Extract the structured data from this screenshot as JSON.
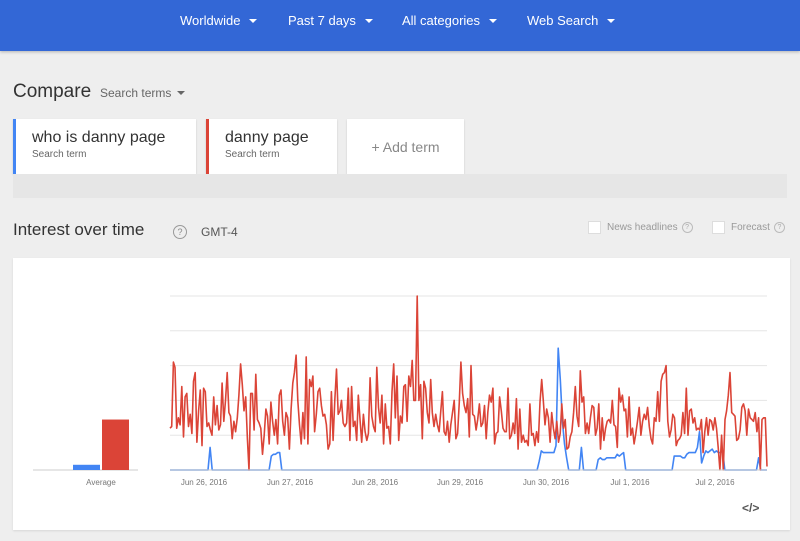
{
  "header": {
    "filters": [
      {
        "label": "Worldwide"
      },
      {
        "label": "Past 7 days"
      },
      {
        "label": "All categories"
      },
      {
        "label": "Web Search"
      }
    ]
  },
  "compare": {
    "title": "Compare",
    "dropdown_label": "Search terms",
    "terms": [
      {
        "term": "who is danny page",
        "sublabel": "Search term",
        "color": "#4285f4"
      },
      {
        "term": "danny page",
        "sublabel": "Search term",
        "color": "#db4437"
      }
    ],
    "add_term_label": "+ Add term"
  },
  "interest": {
    "title": "Interest over time",
    "help_glyph": "?",
    "timezone": "GMT-4",
    "news_headlines_label": "News headlines",
    "forecast_label": "Forecast",
    "embed_label": "</>"
  },
  "chart_data": {
    "type": "line",
    "ylim": [
      0,
      100
    ],
    "x_tick_labels": [
      "Jun 26, 2016",
      "Jun 27, 2016",
      "Jun 28, 2016",
      "Jun 29, 2016",
      "Jun 30, 2016",
      "Jul 1, 2016",
      "Jul 2, 2016"
    ],
    "average": {
      "label": "Average",
      "values": [
        3,
        29
      ],
      "colors": [
        "#4285f4",
        "#db4437"
      ]
    },
    "series": [
      {
        "name": "who is danny page",
        "color": "#4285f4",
        "values": [
          0,
          0,
          0,
          0,
          0,
          0,
          0,
          0,
          0,
          0,
          0,
          0,
          0,
          0,
          0,
          0,
          0,
          0,
          0,
          13,
          0,
          0,
          0,
          0,
          0,
          0,
          0,
          0,
          0,
          0,
          0,
          0,
          0,
          0,
          0,
          0,
          0,
          0,
          0,
          0,
          0,
          0,
          0,
          0,
          0,
          0,
          0,
          0,
          8,
          9,
          9,
          10,
          10,
          0,
          0,
          0,
          0,
          0,
          0,
          0,
          0,
          0,
          0,
          0,
          0,
          0,
          0,
          0,
          0,
          0,
          0,
          0,
          0,
          0,
          0,
          0,
          0,
          0,
          0,
          0,
          0,
          0,
          0,
          0,
          0,
          0,
          0,
          0,
          0,
          0,
          0,
          0,
          0,
          0,
          0,
          0,
          0,
          0,
          0,
          0,
          0,
          0,
          0,
          0,
          0,
          0,
          0,
          0,
          0,
          0,
          0,
          0,
          0,
          0,
          0,
          0,
          0,
          0,
          0,
          0,
          0,
          0,
          0,
          0,
          0,
          0,
          0,
          0,
          0,
          0,
          0,
          0,
          0,
          0,
          0,
          0,
          0,
          0,
          0,
          0,
          0,
          0,
          0,
          0,
          0,
          0,
          0,
          0,
          0,
          0,
          0,
          0,
          0,
          0,
          0,
          0,
          0,
          0,
          0,
          0,
          0,
          0,
          0,
          0,
          0,
          0,
          0,
          0,
          0,
          0,
          0,
          0,
          0,
          0,
          0,
          5,
          11,
          10,
          10,
          10,
          10,
          10,
          10,
          14,
          70,
          52,
          28,
          15,
          7,
          0,
          0,
          0,
          0,
          0,
          0,
          13,
          0,
          0,
          0,
          0,
          0,
          0,
          0,
          6,
          7,
          6,
          6,
          7,
          7,
          7,
          7,
          7,
          9,
          8,
          9,
          10,
          0,
          0,
          0,
          0,
          0,
          0,
          0,
          0,
          0,
          0,
          0,
          0,
          0,
          0,
          0,
          0,
          0,
          0,
          0,
          0,
          0,
          0,
          0,
          8,
          8,
          8,
          8,
          7,
          7,
          9,
          10,
          10,
          10,
          10,
          13,
          22,
          4,
          8,
          11,
          10,
          11,
          12,
          10,
          11,
          10,
          10,
          11,
          0,
          0,
          0,
          0,
          0,
          0,
          0,
          0,
          0,
          0,
          0,
          0,
          0,
          0,
          0,
          0,
          7,
          0,
          0,
          0,
          0
        ]
      },
      {
        "name": "danny page",
        "color": "#db4437",
        "values": [
          24,
          25,
          62,
          59,
          24,
          30,
          26,
          48,
          19,
          42,
          44,
          25,
          32,
          21,
          51,
          56,
          16,
          34,
          46,
          14,
          47,
          45,
          25,
          27,
          23,
          20,
          42,
          26,
          37,
          23,
          26,
          50,
          28,
          40,
          56,
          33,
          31,
          18,
          28,
          22,
          30,
          43,
          61,
          49,
          34,
          42,
          18,
          0,
          44,
          44,
          23,
          55,
          29,
          27,
          24,
          9,
          20,
          35,
          31,
          15,
          39,
          28,
          20,
          29,
          15,
          43,
          46,
          28,
          20,
          33,
          30,
          12,
          35,
          50,
          56,
          66,
          40,
          26,
          15,
          33,
          18,
          65,
          15,
          52,
          48,
          54,
          22,
          32,
          45,
          47,
          37,
          31,
          32,
          26,
          12,
          15,
          45,
          17,
          40,
          58,
          32,
          34,
          40,
          27,
          25,
          27,
          47,
          17,
          48,
          25,
          28,
          17,
          43,
          29,
          16,
          32,
          22,
          17,
          21,
          53,
          31,
          25,
          22,
          59,
          36,
          27,
          43,
          15,
          38,
          24,
          25,
          15,
          45,
          61,
          30,
          54,
          17,
          31,
          27,
          48,
          49,
          28,
          54,
          48,
          63,
          40,
          40,
          100,
          40,
          49,
          18,
          51,
          47,
          33,
          27,
          52,
          33,
          25,
          32,
          26,
          22,
          34,
          45,
          22,
          20,
          28,
          16,
          26,
          33,
          40,
          18,
          21,
          39,
          62,
          44,
          37,
          33,
          41,
          19,
          60,
          32,
          31,
          23,
          29,
          38,
          25,
          27,
          37,
          18,
          33,
          43,
          39,
          47,
          15,
          21,
          22,
          42,
          34,
          24,
          22,
          22,
          47,
          18,
          20,
          27,
          21,
          41,
          12,
          35,
          16,
          20,
          16,
          17,
          14,
          38,
          20,
          21,
          14,
          22,
          16,
          39,
          52,
          40,
          26,
          35,
          30,
          16,
          33,
          24,
          18,
          28,
          16,
          21,
          38,
          24,
          29,
          12,
          13,
          19,
          22,
          33,
          48,
          31,
          25,
          57,
          39,
          42,
          21,
          27,
          21,
          30,
          37,
          36,
          20,
          24,
          38,
          12,
          30,
          17,
          24,
          28,
          29,
          27,
          40,
          26,
          25,
          13,
          47,
          39,
          43,
          34,
          35,
          19,
          42,
          20,
          24,
          15,
          21,
          28,
          36,
          20,
          28,
          32,
          29,
          36,
          25,
          18,
          15,
          30,
          28,
          45,
          28,
          51,
          55,
          56,
          60,
          28,
          19,
          23,
          32,
          30,
          14,
          17,
          18,
          20,
          33,
          21,
          47,
          20,
          34,
          35,
          27,
          30,
          23,
          24,
          23,
          29,
          10,
          22,
          30,
          20,
          29,
          28,
          23,
          30,
          24,
          13,
          0,
          20,
          0,
          29,
          34,
          43,
          56,
          33,
          32,
          31,
          17,
          18,
          23,
          36,
          38,
          34,
          20,
          35,
          30,
          29,
          28,
          33,
          22,
          30,
          0,
          29,
          30,
          30,
          2
        ]
      }
    ]
  }
}
